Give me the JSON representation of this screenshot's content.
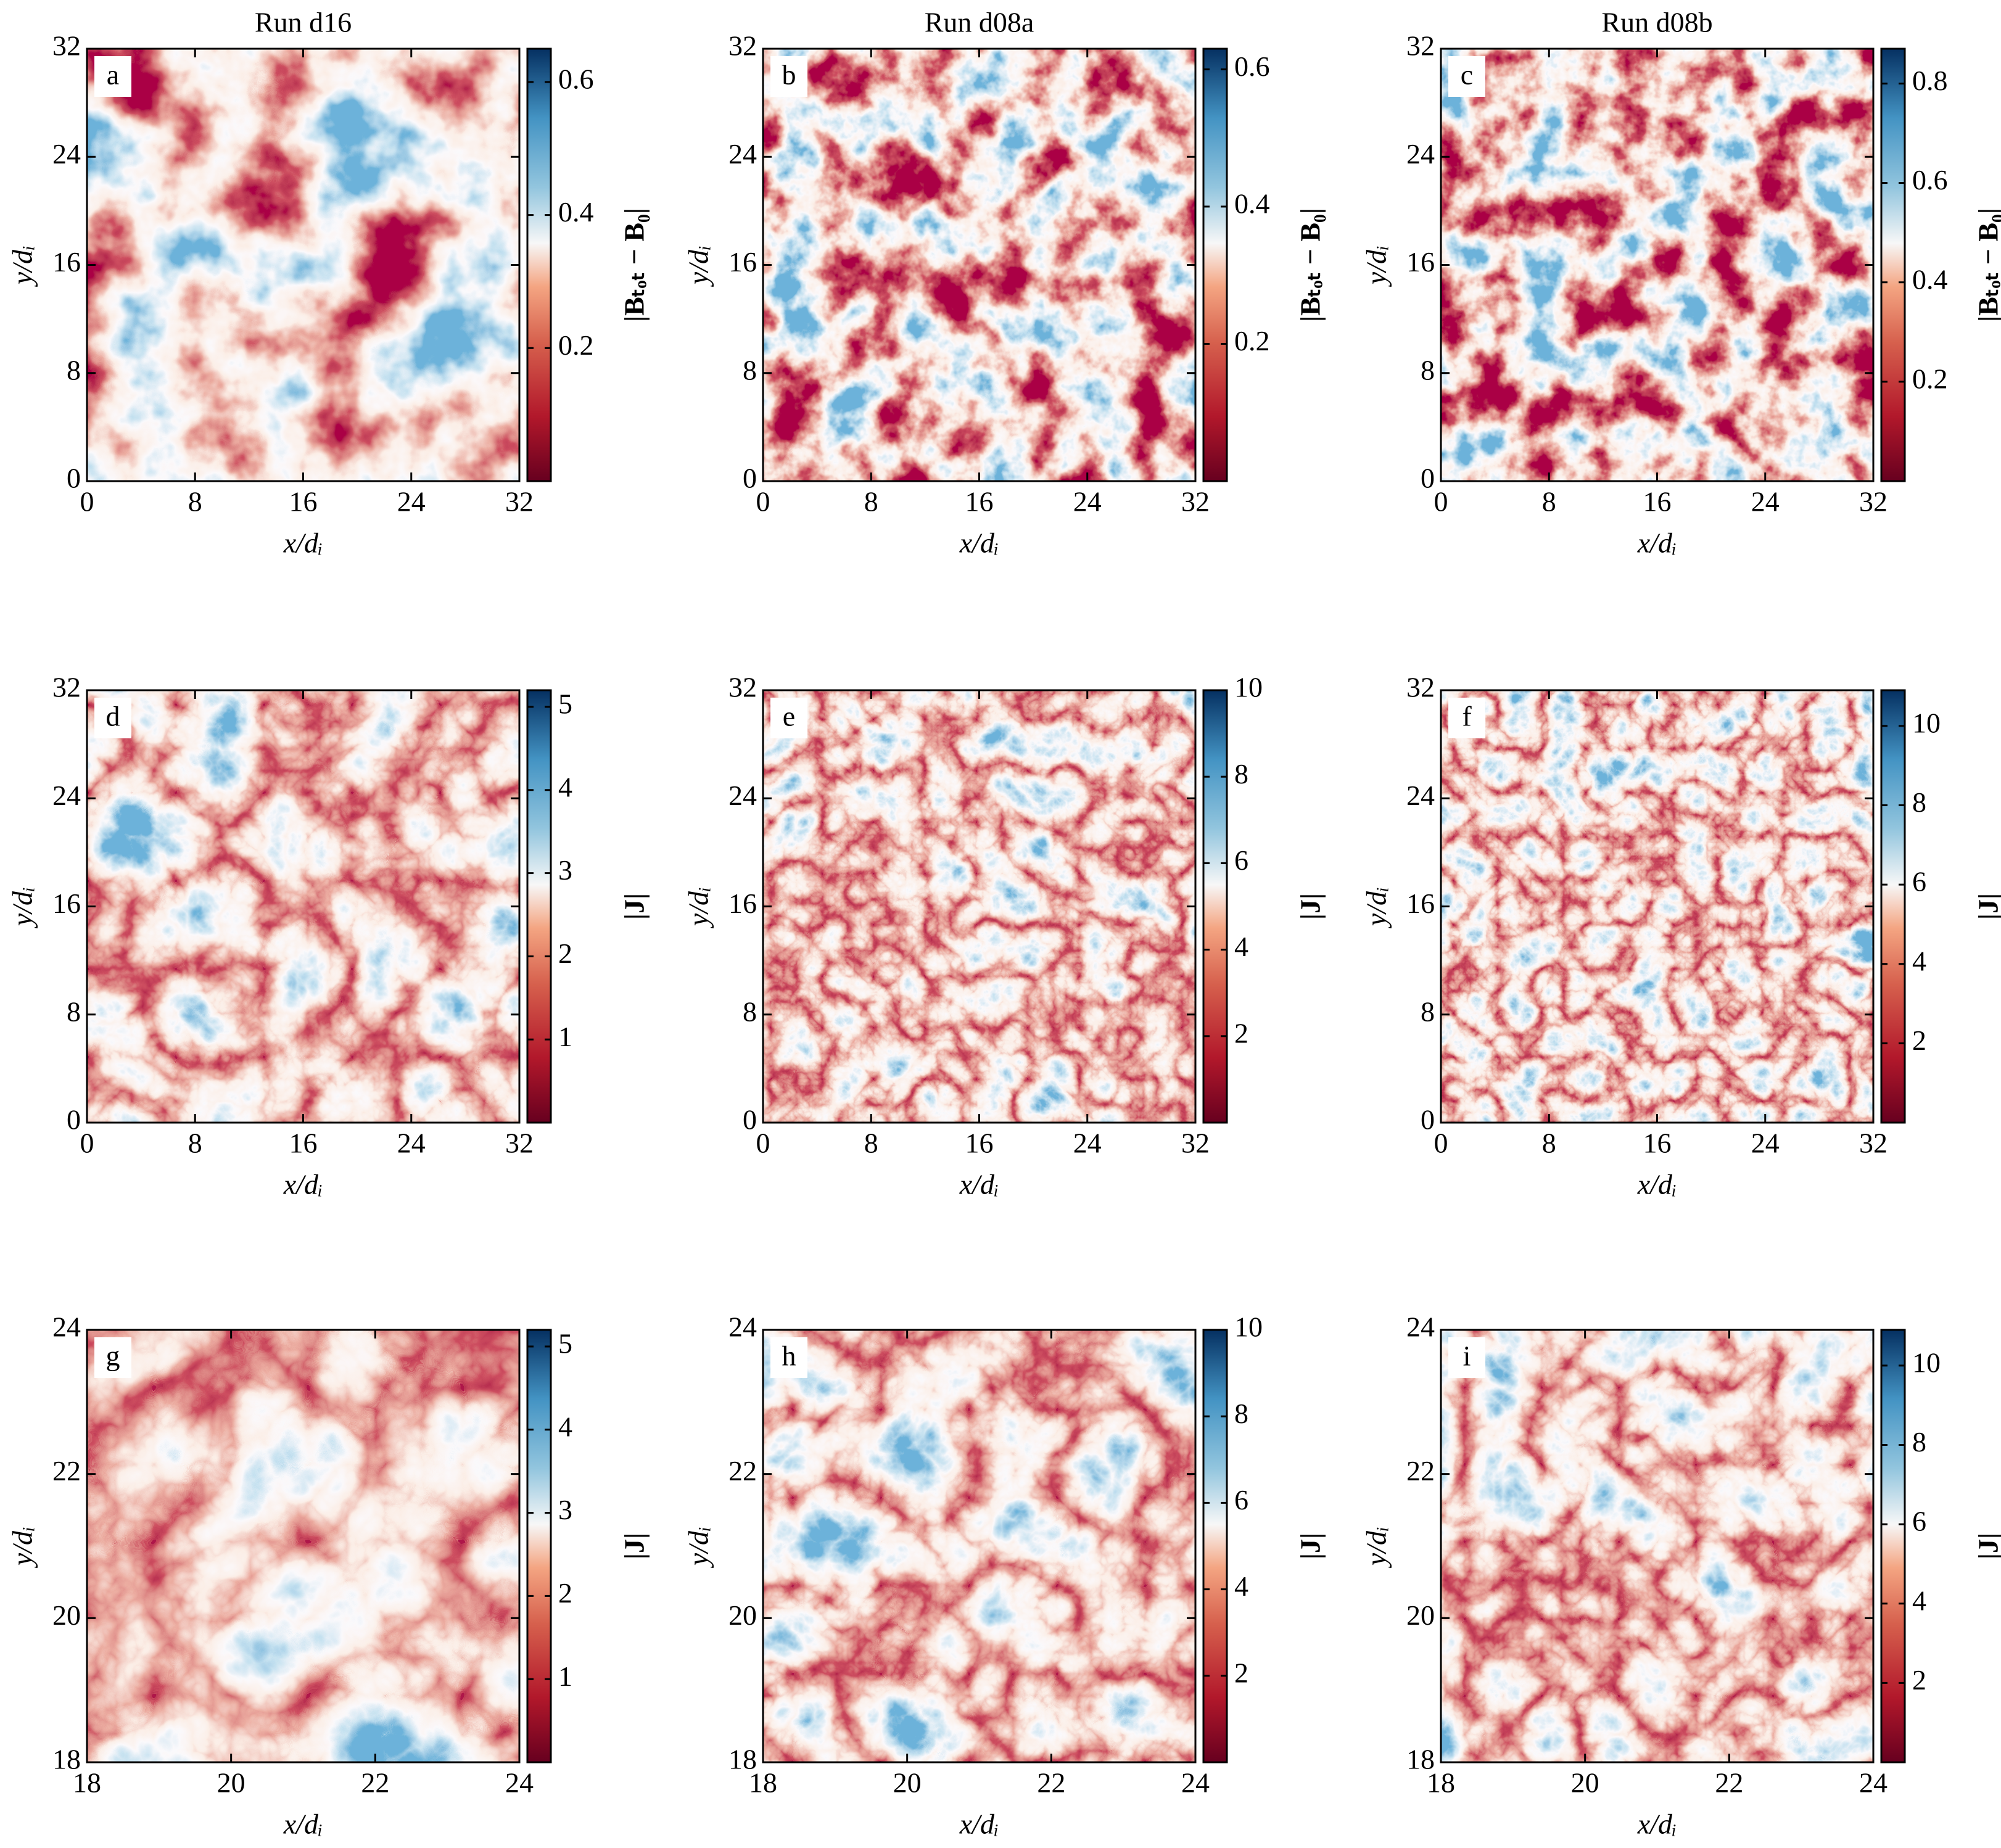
{
  "chart_data": [
    {
      "type": "heatmap",
      "title": "Run d16",
      "panel": "a",
      "xlabel": "x/dᵢ",
      "ylabel": "y/dᵢ",
      "xlim": [
        0,
        32
      ],
      "ylim": [
        0,
        32
      ],
      "xticks": [
        0,
        8,
        16,
        24,
        32
      ],
      "yticks": [
        0,
        8,
        16,
        24,
        32
      ],
      "colorbar": {
        "label": "|Bₜₒₜ − B₀|",
        "lim": [
          0,
          0.65
        ],
        "ticks": [
          0.2,
          0.4,
          0.6
        ]
      }
    },
    {
      "type": "heatmap",
      "title": "Run d08a",
      "panel": "b",
      "xlabel": "x/dᵢ",
      "ylabel": "y/dᵢ",
      "xlim": [
        0,
        32
      ],
      "ylim": [
        0,
        32
      ],
      "xticks": [
        0,
        8,
        16,
        24,
        32
      ],
      "yticks": [
        0,
        8,
        16,
        24,
        32
      ],
      "colorbar": {
        "label": "|Bₜₒₜ − B₀|",
        "lim": [
          0,
          0.63
        ],
        "ticks": [
          0.2,
          0.4,
          0.6
        ]
      }
    },
    {
      "type": "heatmap",
      "title": "Run d08b",
      "panel": "c",
      "xlabel": "x/dᵢ",
      "ylabel": "y/dᵢ",
      "xlim": [
        0,
        32
      ],
      "ylim": [
        0,
        32
      ],
      "xticks": [
        0,
        8,
        16,
        24,
        32
      ],
      "yticks": [
        0,
        8,
        16,
        24,
        32
      ],
      "colorbar": {
        "label": "|Bₜₒₜ − B₀|",
        "lim": [
          0,
          0.87
        ],
        "ticks": [
          0.2,
          0.4,
          0.6,
          0.8
        ]
      }
    },
    {
      "type": "heatmap",
      "panel": "d",
      "xlabel": "x/dᵢ",
      "ylabel": "y/dᵢ",
      "xlim": [
        0,
        32
      ],
      "ylim": [
        0,
        32
      ],
      "xticks": [
        0,
        8,
        16,
        24,
        32
      ],
      "yticks": [
        0,
        8,
        16,
        24,
        32
      ],
      "colorbar": {
        "label": "|J|",
        "lim": [
          0,
          5.2
        ],
        "ticks": [
          1,
          2,
          3,
          4,
          5
        ]
      }
    },
    {
      "type": "heatmap",
      "panel": "e",
      "xlabel": "x/dᵢ",
      "ylabel": "y/dᵢ",
      "xlim": [
        0,
        32
      ],
      "ylim": [
        0,
        32
      ],
      "xticks": [
        0,
        8,
        16,
        24,
        32
      ],
      "yticks": [
        0,
        8,
        16,
        24,
        32
      ],
      "colorbar": {
        "label": "|J|",
        "lim": [
          0,
          10
        ],
        "ticks": [
          2,
          4,
          6,
          8,
          10
        ]
      }
    },
    {
      "type": "heatmap",
      "panel": "f",
      "xlabel": "x/dᵢ",
      "ylabel": "y/dᵢ",
      "xlim": [
        0,
        32
      ],
      "ylim": [
        0,
        32
      ],
      "xticks": [
        0,
        8,
        16,
        24,
        32
      ],
      "yticks": [
        0,
        8,
        16,
        24,
        32
      ],
      "colorbar": {
        "label": "|J|",
        "lim": [
          0,
          10.9
        ],
        "ticks": [
          2,
          4,
          6,
          8,
          10
        ]
      }
    },
    {
      "type": "heatmap",
      "panel": "g",
      "xlabel": "x/dᵢ",
      "ylabel": "y/dᵢ",
      "xlim": [
        18,
        24
      ],
      "ylim": [
        18,
        24
      ],
      "xticks": [
        18,
        20,
        22,
        24
      ],
      "yticks": [
        18,
        20,
        22,
        24
      ],
      "colorbar": {
        "label": "|J|",
        "lim": [
          0,
          5.2
        ],
        "ticks": [
          1,
          2,
          3,
          4,
          5
        ]
      }
    },
    {
      "type": "heatmap",
      "panel": "h",
      "xlabel": "x/dᵢ",
      "ylabel": "y/dᵢ",
      "xlim": [
        18,
        24
      ],
      "ylim": [
        18,
        24
      ],
      "xticks": [
        18,
        20,
        22,
        24
      ],
      "yticks": [
        18,
        20,
        22,
        24
      ],
      "colorbar": {
        "label": "|J|",
        "lim": [
          0,
          10
        ],
        "ticks": [
          2,
          4,
          6,
          8,
          10
        ]
      }
    },
    {
      "type": "heatmap",
      "panel": "i",
      "xlabel": "x/dᵢ",
      "ylabel": "y/dᵢ",
      "xlim": [
        18,
        24
      ],
      "ylim": [
        18,
        24
      ],
      "xticks": [
        18,
        20,
        22,
        24
      ],
      "yticks": [
        18,
        20,
        22,
        24
      ],
      "colorbar": {
        "label": "|J|",
        "lim": [
          0,
          10.9
        ],
        "ticks": [
          2,
          4,
          6,
          8,
          10
        ]
      }
    }
  ]
}
